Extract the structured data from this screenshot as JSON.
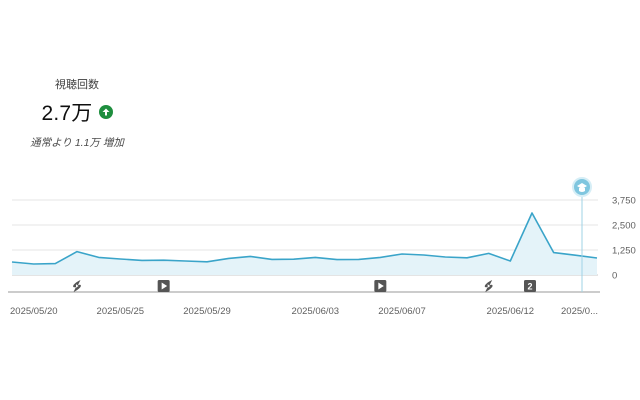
{
  "metric": {
    "label": "視聴回数",
    "value": "2.7万",
    "trend": "up",
    "comparison": "通常より 1.1万 増加"
  },
  "colors": {
    "line": "#3aa4c9",
    "fill": "#e4f3f9",
    "up": "#1e8e3e",
    "grid": "#e5e5e5",
    "marker_bg": "#555555",
    "pin": "#9fd3e6"
  },
  "chart_data": {
    "type": "area",
    "ylim": [
      0,
      3750
    ],
    "y_ticks": [
      "3,750",
      "2,500",
      "1,250",
      "0"
    ],
    "y_tick_values": [
      3750,
      2500,
      1250,
      0
    ],
    "x_labels": [
      "2025/05/20",
      "2025/05/25",
      "2025/05/29",
      "2025/06/03",
      "2025/06/07",
      "2025/06/12",
      "2025/0..."
    ],
    "x_label_index": [
      0,
      5,
      9,
      14,
      18,
      23,
      26
    ],
    "values": [
      650,
      550,
      570,
      1170,
      880,
      800,
      730,
      740,
      700,
      660,
      830,
      930,
      780,
      790,
      880,
      770,
      780,
      880,
      1050,
      1000,
      900,
      860,
      1080,
      700,
      3100,
      1120,
      990,
      850
    ],
    "markers": [
      {
        "index": 3,
        "icon": "shorts-icon"
      },
      {
        "index": 7,
        "icon": "play-icon"
      },
      {
        "index": 17,
        "icon": "play-icon"
      },
      {
        "index": 22,
        "icon": "shorts-icon"
      },
      {
        "index": 24,
        "icon": "count-badge",
        "text": "2"
      }
    ],
    "pin_index": 27,
    "pin_icon": "graduation-cap-icon"
  }
}
